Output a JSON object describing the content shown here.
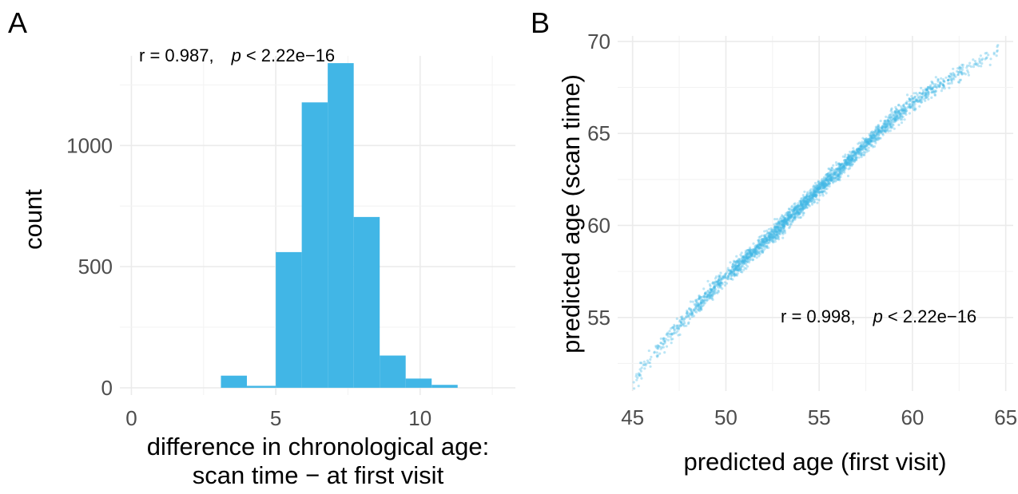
{
  "chart_data": [
    {
      "panel_label": "A",
      "type": "bar",
      "subtype": "histogram",
      "xlabel_lines": [
        "difference in chronological age:",
        "scan time − at first visit"
      ],
      "ylabel": "count",
      "xlim": [
        -0.4,
        13.3
      ],
      "ylim": [
        -30,
        1370
      ],
      "xticks": [
        0,
        5,
        10
      ],
      "xtick_labels": [
        "0",
        "5",
        "10"
      ],
      "yticks": [
        0,
        500,
        1000
      ],
      "ytick_labels": [
        "0",
        "500",
        "1000"
      ],
      "grid": true,
      "bar_color": "#41B6E6",
      "annotation": {
        "r_text": "r = 0.987,",
        "p_label": "p",
        "p_text": "< 2.22e−16"
      },
      "bins": [
        {
          "x0": 3.1,
          "x1": 4.0,
          "count": 50
        },
        {
          "x0": 4.0,
          "x1": 5.0,
          "count": 8
        },
        {
          "x0": 5.0,
          "x1": 5.9,
          "count": 560
        },
        {
          "x0": 5.9,
          "x1": 6.8,
          "count": 1178
        },
        {
          "x0": 6.8,
          "x1": 7.7,
          "count": 1340
        },
        {
          "x0": 7.7,
          "x1": 8.6,
          "count": 705
        },
        {
          "x0": 8.6,
          "x1": 9.5,
          "count": 133
        },
        {
          "x0": 9.5,
          "x1": 10.4,
          "count": 38
        },
        {
          "x0": 10.4,
          "x1": 11.3,
          "count": 12
        }
      ]
    },
    {
      "panel_label": "B",
      "type": "scatter",
      "xlabel": "predicted age (first visit)",
      "ylabel": "predicted age (scan time)",
      "xlim": [
        44.2,
        65.4
      ],
      "ylim": [
        51.0,
        70.3
      ],
      "xticks": [
        45,
        50,
        55,
        60,
        65
      ],
      "xtick_labels": [
        "45",
        "50",
        "55",
        "60",
        "65"
      ],
      "yticks": [
        55,
        60,
        65,
        70
      ],
      "ytick_labels": [
        "55",
        "60",
        "65",
        "70"
      ],
      "grid": true,
      "point_color": "#41B6E6",
      "annotation": {
        "r_text": "r = 0.998,",
        "p_label": "p",
        "p_text": "< 2.22e−16"
      },
      "trend_points": [
        [
          45,
          51.5
        ],
        [
          46,
          52.8
        ],
        [
          47,
          54.0
        ],
        [
          48,
          55.1
        ],
        [
          49,
          56.2
        ],
        [
          50,
          57.2
        ],
        [
          51,
          58.1
        ],
        [
          52,
          59.0
        ],
        [
          53,
          60.0
        ],
        [
          54,
          61.0
        ],
        [
          55,
          62.0
        ],
        [
          56,
          62.9
        ],
        [
          57,
          63.9
        ],
        [
          58,
          64.9
        ],
        [
          59,
          65.8
        ],
        [
          60,
          66.6
        ],
        [
          61,
          67.3
        ],
        [
          62,
          68.0
        ],
        [
          63,
          68.6
        ],
        [
          64,
          69.2
        ],
        [
          64.6,
          69.5
        ]
      ],
      "n_points": 2500
    }
  ]
}
